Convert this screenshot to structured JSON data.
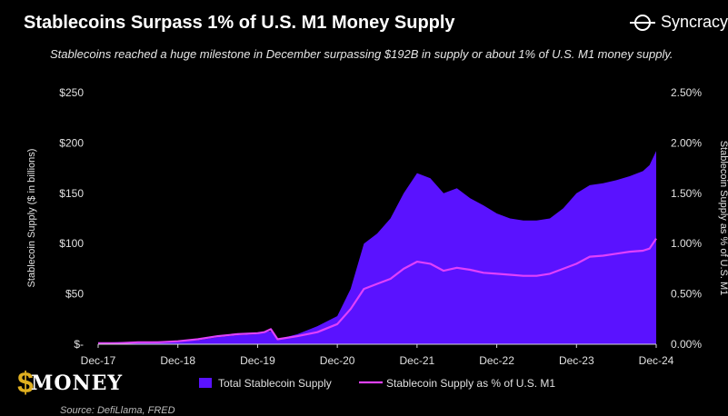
{
  "header": {
    "title": "Stablecoins Surpass 1% of U.S. M1 Money Supply",
    "subtitle": "Stablecoins reached a huge milestone in December surpassing $192B in supply or about 1% of U.S. M1 money supply.",
    "brand_name": "Syncracy"
  },
  "watermark": {
    "text": "MONEY"
  },
  "footer": {
    "source": "Source: DefiLlama, FRED"
  },
  "colors": {
    "area": "#5a12ff",
    "line": "#e040fb",
    "background": "#000000",
    "text": "#ffffff"
  },
  "chart_data": {
    "type": "area",
    "x_ticks": [
      "Dec-17",
      "Dec-18",
      "Dec-19",
      "Dec-20",
      "Dec-21",
      "Dec-22",
      "Dec-23",
      "Dec-24"
    ],
    "y_left": {
      "label": "Stablecoin Supply ($ in billions)",
      "ticks": [
        "$-",
        "$50",
        "$100",
        "$150",
        "$200",
        "$250"
      ],
      "range": [
        0,
        250
      ]
    },
    "y_right": {
      "label": "Stablecoin Supply as % of U.S. M1",
      "ticks": [
        "0.00%",
        "0.50%",
        "1.00%",
        "1.50%",
        "2.00%",
        "2.50%"
      ],
      "range": [
        0,
        2.5
      ]
    },
    "grid": false,
    "legend_position": "bottom",
    "series": [
      {
        "name": "Total Stablecoin Supply",
        "kind": "area",
        "axis": "left",
        "x": [
          "2017-12",
          "2018-03",
          "2018-06",
          "2018-09",
          "2018-12",
          "2019-03",
          "2019-06",
          "2019-09",
          "2019-12",
          "2020-01",
          "2020-02",
          "2020-03",
          "2020-06",
          "2020-09",
          "2020-12",
          "2021-02",
          "2021-04",
          "2021-06",
          "2021-08",
          "2021-10",
          "2021-12",
          "2022-02",
          "2022-04",
          "2022-06",
          "2022-08",
          "2022-10",
          "2022-12",
          "2023-02",
          "2023-04",
          "2023-06",
          "2023-08",
          "2023-10",
          "2023-12",
          "2024-02",
          "2024-04",
          "2024-06",
          "2024-08",
          "2024-10",
          "2024-11",
          "2024-12"
        ],
        "values": [
          1.5,
          2,
          2.5,
          2.8,
          3,
          4,
          7,
          9,
          10,
          12,
          13,
          5,
          10,
          18,
          28,
          55,
          100,
          110,
          125,
          150,
          170,
          165,
          150,
          155,
          145,
          138,
          130,
          125,
          123,
          123,
          125,
          135,
          150,
          158,
          160,
          163,
          167,
          172,
          178,
          192
        ]
      },
      {
        "name": "Stablecoin Supply as % of U.S. M1",
        "kind": "line",
        "axis": "right",
        "x": [
          "2017-12",
          "2018-03",
          "2018-06",
          "2018-09",
          "2018-12",
          "2019-03",
          "2019-06",
          "2019-09",
          "2019-12",
          "2020-01",
          "2020-02",
          "2020-03",
          "2020-06",
          "2020-09",
          "2020-12",
          "2021-02",
          "2021-04",
          "2021-06",
          "2021-08",
          "2021-10",
          "2021-12",
          "2022-02",
          "2022-04",
          "2022-06",
          "2022-08",
          "2022-10",
          "2022-12",
          "2023-02",
          "2023-04",
          "2023-06",
          "2023-08",
          "2023-10",
          "2023-12",
          "2024-02",
          "2024-04",
          "2024-06",
          "2024-08",
          "2024-10",
          "2024-11",
          "2024-12"
        ],
        "values": [
          0.01,
          0.01,
          0.02,
          0.02,
          0.03,
          0.05,
          0.08,
          0.1,
          0.11,
          0.12,
          0.15,
          0.05,
          0.08,
          0.12,
          0.2,
          0.35,
          0.55,
          0.6,
          0.65,
          0.75,
          0.82,
          0.8,
          0.73,
          0.76,
          0.74,
          0.71,
          0.7,
          0.69,
          0.68,
          0.68,
          0.7,
          0.75,
          0.8,
          0.87,
          0.88,
          0.9,
          0.92,
          0.93,
          0.95,
          1.05
        ]
      }
    ]
  }
}
